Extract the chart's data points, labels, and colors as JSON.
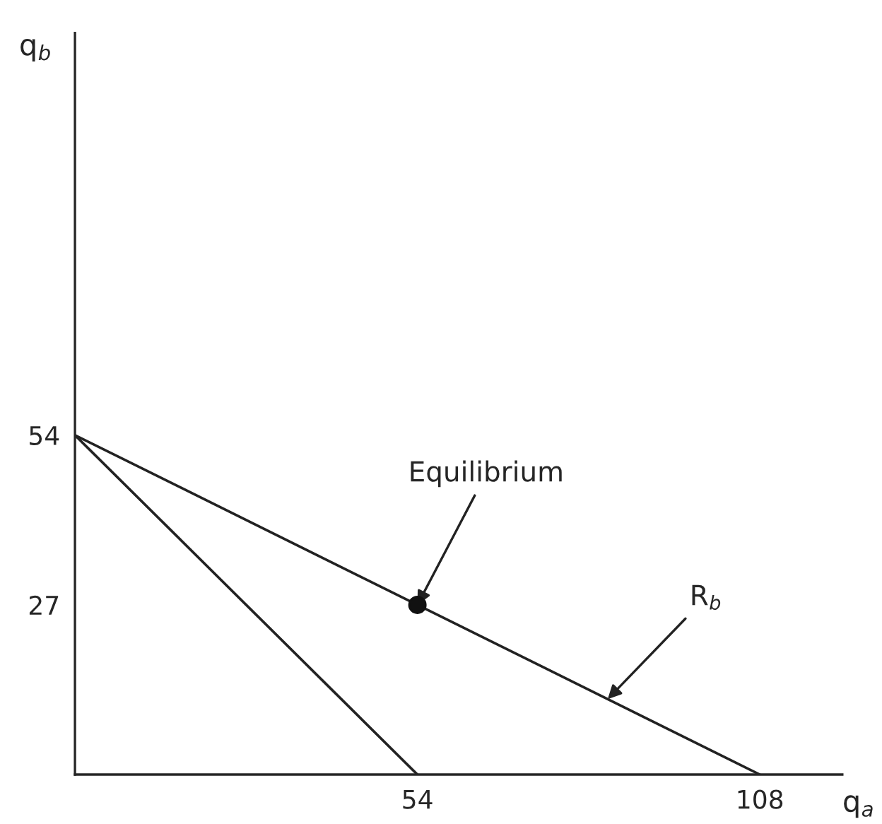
{
  "chart_data": {
    "type": "line",
    "xlabel": "q$_{a}$",
    "ylabel": "q$_{b}$",
    "xlim": [
      0,
      121
    ],
    "ylim": [
      0,
      118
    ],
    "xticks": [
      54,
      108
    ],
    "yticks": [
      27,
      54
    ],
    "grid": false,
    "marker": "none",
    "line_style": "solid",
    "series": [
      {
        "color": "#222222",
        "x": [
          0,
          108
        ],
        "values": [
          54,
          0
        ]
      },
      {
        "color": "#222222",
        "x": [
          0,
          54
        ],
        "values": [
          54,
          0
        ]
      },
      {
        "type": "scatter",
        "color": "#111111",
        "x": [
          54
        ],
        "values": [
          27
        ],
        "marker": "circle"
      }
    ],
    "annotations": [
      {
        "text": "Equilibrium",
        "x": 54,
        "y": 27
      },
      {
        "text": "R$_{b}$",
        "x": 84,
        "y": 12
      }
    ]
  }
}
